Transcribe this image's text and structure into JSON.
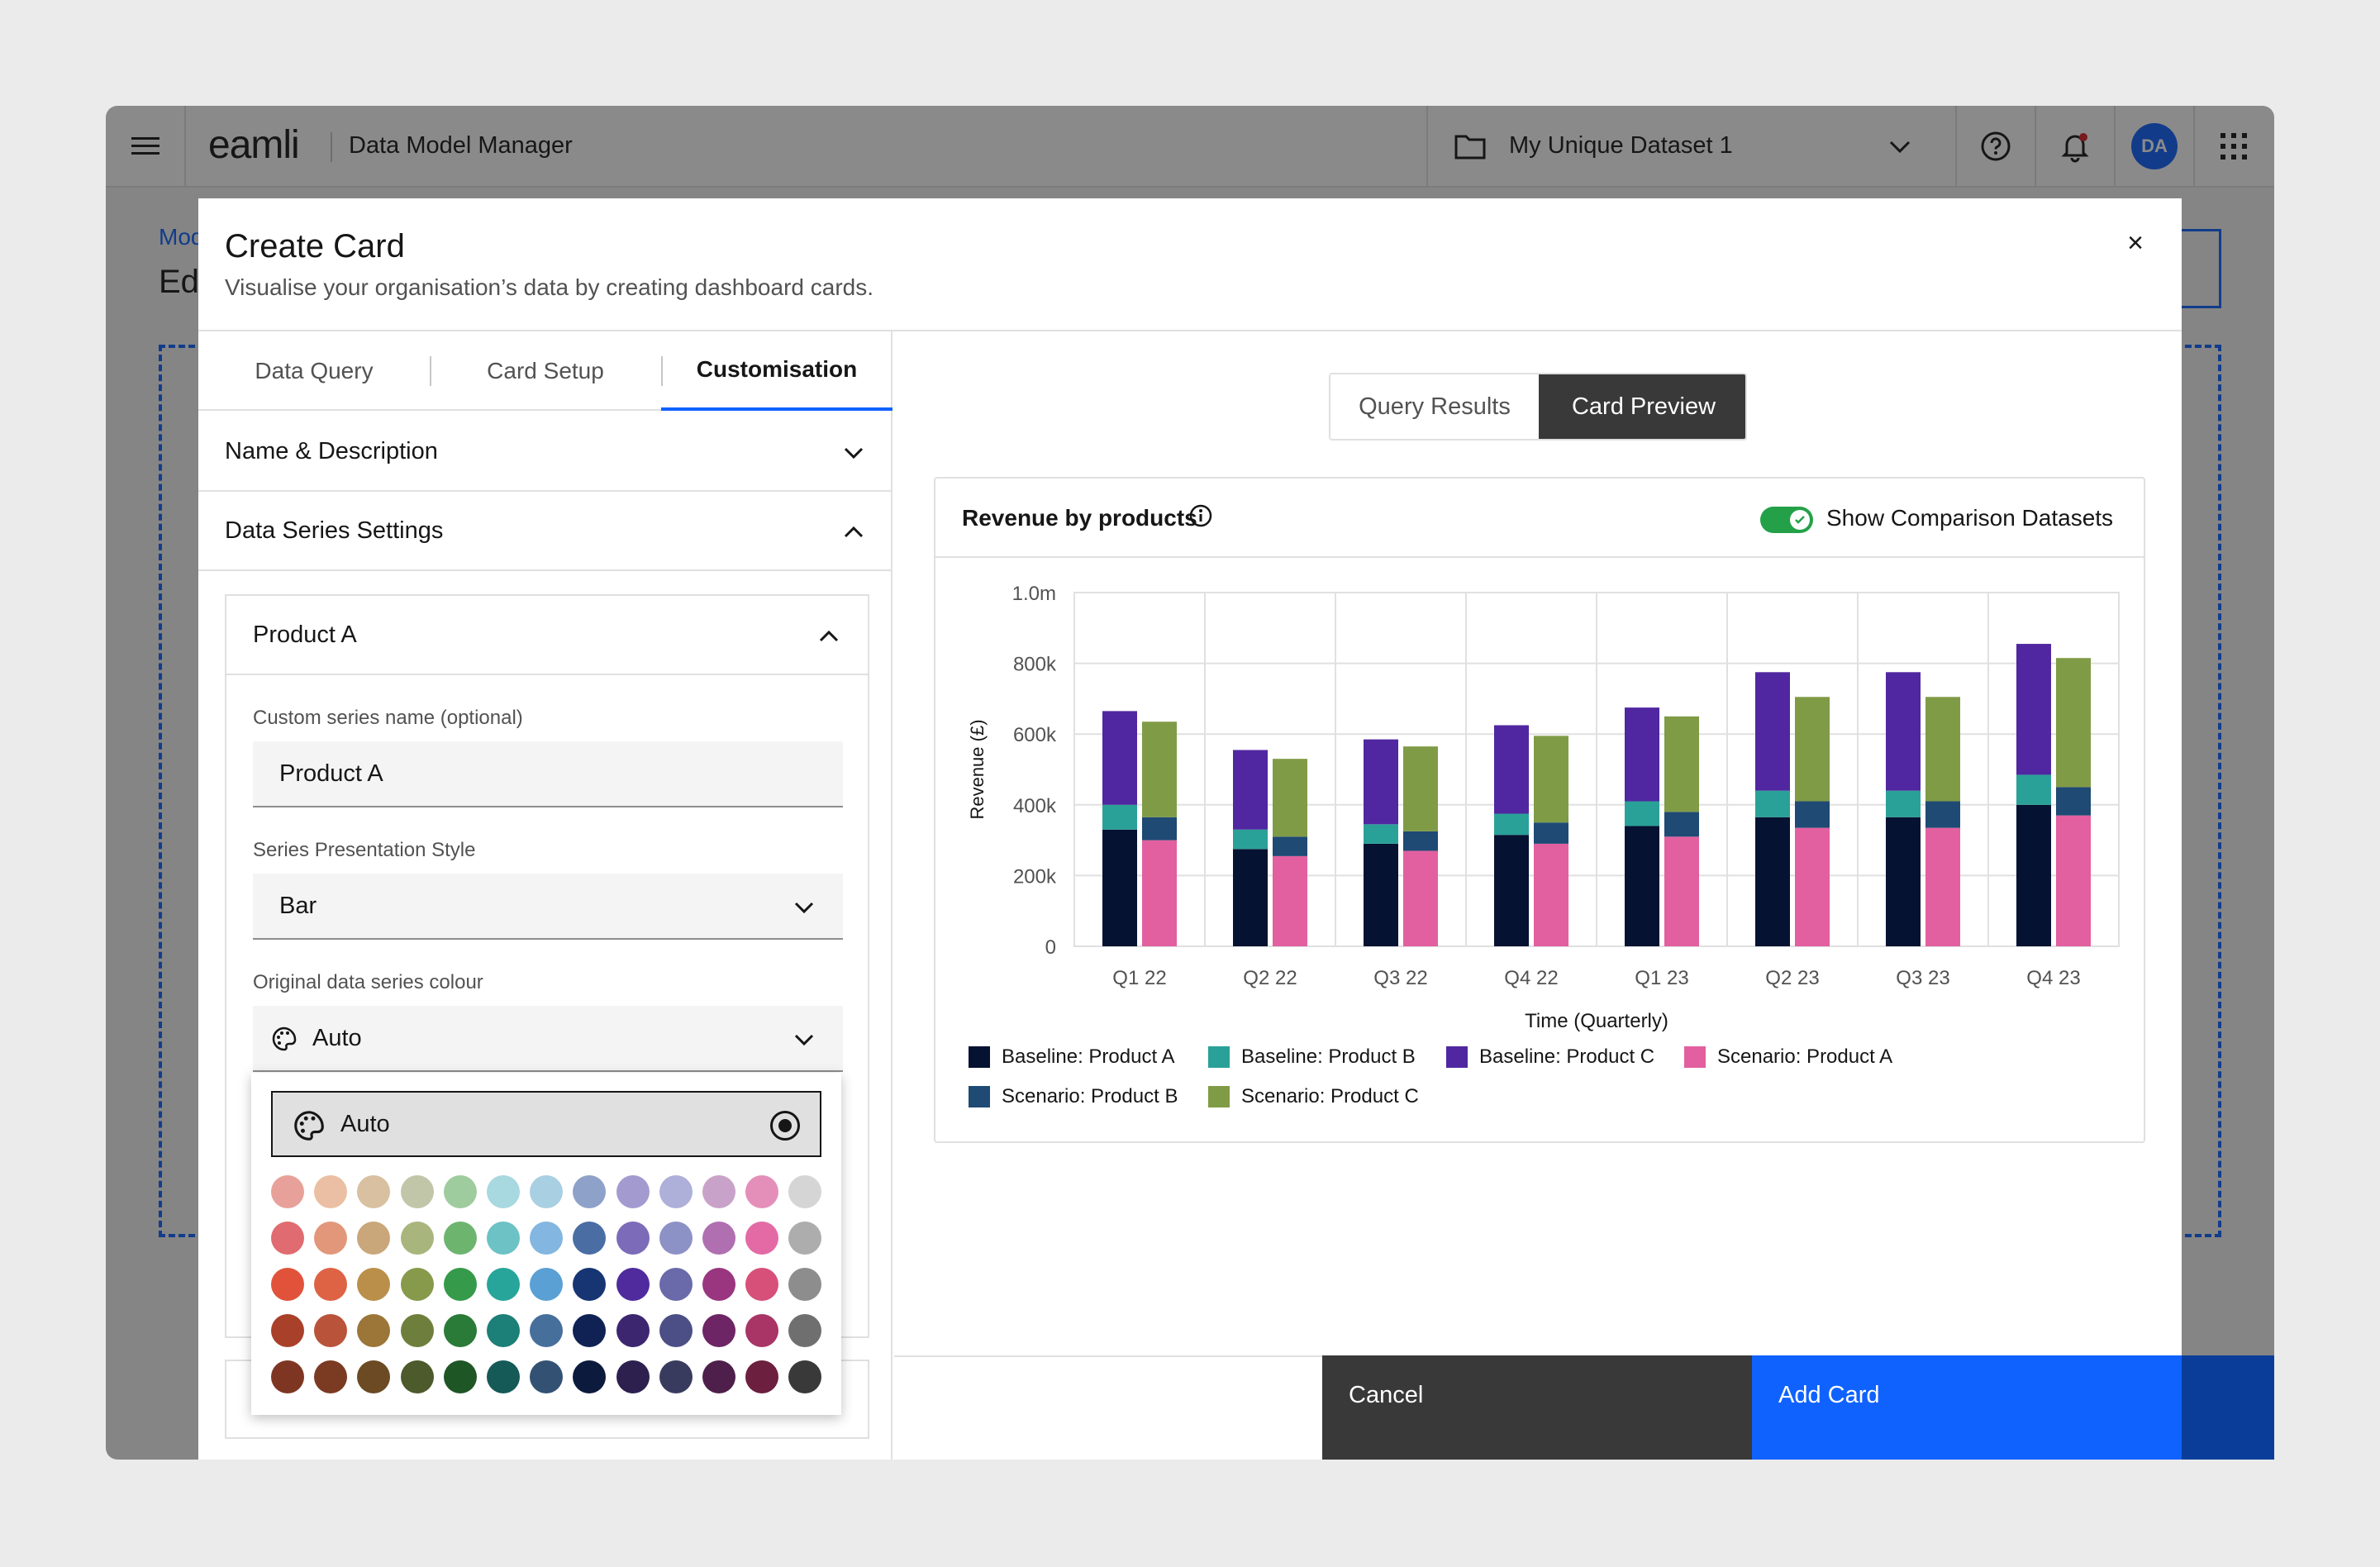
{
  "topbar": {
    "brand": "eamli",
    "app_title": "Data Model Manager",
    "dataset": "My Unique Dataset 1",
    "avatar": "DA"
  },
  "page": {
    "breadcrumb": "Mod",
    "heading": "Ed"
  },
  "modal": {
    "title": "Create Card",
    "subtitle": "Visualise your organisation’s data by creating dashboard cards.",
    "close": "×",
    "tabs": [
      "Data Query",
      "Card Setup",
      "Customisation"
    ],
    "active_tab": "Customisation",
    "sections": {
      "name_desc": "Name & Description",
      "series_settings": "Data Series Settings"
    },
    "series": {
      "header": "Product A",
      "custom_name_label": "Custom series name (optional)",
      "custom_name_value": "Product A",
      "style_label": "Series Presentation Style",
      "style_value": "Bar",
      "colour_label": "Original data series colour",
      "colour_value": "Auto"
    },
    "dropdown": {
      "auto_label": "Auto",
      "swatches": [
        [
          "#e8a19a",
          "#ebbfa3",
          "#d8c0a0",
          "#c2c6a8",
          "#9fcc9e",
          "#a8d8e0",
          "#a9cfe2",
          "#8ea1c9",
          "#a39bd0",
          "#aeb0d9",
          "#c9a2c9",
          "#e48fb9",
          "#d5d5d5"
        ],
        [
          "#e06b70",
          "#e2977a",
          "#c9a77a",
          "#a8b67e",
          "#6db56f",
          "#6cc2c4",
          "#83b6e0",
          "#4a6ea3",
          "#7b6bb8",
          "#8c92c6",
          "#b06fb0",
          "#e36aa5",
          "#adadad"
        ],
        [
          "#e0533a",
          "#de6244",
          "#b98f4a",
          "#879a4c",
          "#359a49",
          "#27a59a",
          "#5aa0d4",
          "#173573",
          "#4f2b9e",
          "#6a6aaa",
          "#9a3680",
          "#d6507a",
          "#8d8d8d"
        ],
        [
          "#a9402a",
          "#b9533a",
          "#9b7638",
          "#6e7f3d",
          "#2a7a38",
          "#1c7f78",
          "#476f9c",
          "#0f2253",
          "#3d2670",
          "#4c4f85",
          "#6e2565",
          "#a83566",
          "#6f6f6f"
        ],
        [
          "#7e3623",
          "#7b3a22",
          "#6b4a24",
          "#4c5a2c",
          "#1f5626",
          "#155a57",
          "#335273",
          "#0c1a3d",
          "#2d204f",
          "#393b5e",
          "#4e1f4a",
          "#6c1f3f",
          "#393939"
        ]
      ]
    },
    "preview": {
      "seg_query": "Query Results",
      "seg_preview": "Card Preview",
      "card_title": "Revenue by products",
      "toggle_label": "Show Comparison Datasets",
      "toggle_on": true
    },
    "footer": {
      "cancel": "Cancel",
      "add": "Add Card"
    }
  },
  "chart_data": {
    "type": "bar",
    "stacked": true,
    "grouped": true,
    "title": "Revenue by products",
    "xlabel": "Time (Quarterly)",
    "ylabel": "Revenue (£)",
    "ylim": [
      0,
      1000000
    ],
    "yticks": [
      0,
      200000,
      400000,
      600000,
      800000,
      1000000
    ],
    "ytick_labels": [
      "0",
      "200k",
      "400k",
      "600k",
      "800k",
      "1.0m"
    ],
    "categories": [
      "Q1 22",
      "Q2 22",
      "Q3 22",
      "Q4 22",
      "Q1 23",
      "Q2 23",
      "Q3 23",
      "Q4 23"
    ],
    "series": [
      {
        "name": "Baseline: Product A",
        "group": "Baseline",
        "color": "#061231",
        "values": [
          330000,
          275000,
          290000,
          315000,
          340000,
          365000,
          365000,
          400000
        ]
      },
      {
        "name": "Baseline: Product B",
        "group": "Baseline",
        "color": "#2aa198",
        "values": [
          70000,
          55000,
          55000,
          60000,
          70000,
          75000,
          75000,
          85000
        ]
      },
      {
        "name": "Baseline: Product C",
        "group": "Baseline",
        "color": "#5027a0",
        "values": [
          265000,
          225000,
          240000,
          250000,
          265000,
          335000,
          335000,
          370000
        ]
      },
      {
        "name": "Scenario: Product A",
        "group": "Scenario",
        "color": "#e2609f",
        "values": [
          300000,
          255000,
          270000,
          290000,
          310000,
          335000,
          335000,
          370000
        ]
      },
      {
        "name": "Scenario: Product B",
        "group": "Scenario",
        "color": "#1e4a74",
        "values": [
          65000,
          55000,
          55000,
          60000,
          70000,
          75000,
          75000,
          80000
        ]
      },
      {
        "name": "Scenario: Product C",
        "group": "Scenario",
        "color": "#809b46",
        "values": [
          270000,
          220000,
          240000,
          245000,
          270000,
          295000,
          295000,
          365000
        ]
      }
    ],
    "grid": true,
    "legend_position": "bottom-left"
  }
}
